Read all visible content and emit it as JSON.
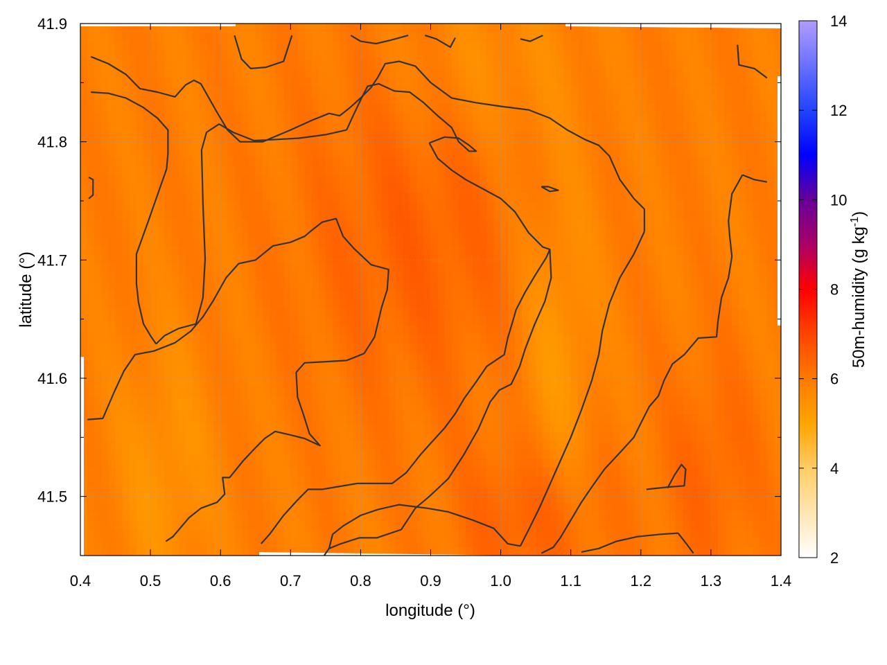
{
  "chart_data": {
    "type": "heatmap",
    "xlabel": "longitude (°)",
    "ylabel": "latitude (°)",
    "colorbar_label": "50m-humidity (g kg",
    "colorbar_label_sup": "-1",
    "colorbar_label_end": ")",
    "xlim": [
      0.4,
      1.4
    ],
    "ylim": [
      41.45,
      41.9
    ],
    "x_ticks": [
      0.4,
      0.5,
      0.6,
      0.7,
      0.8,
      0.9,
      1.0,
      1.1,
      1.2,
      1.3,
      1.4
    ],
    "x_tick_labels": [
      "0.4",
      "0.5",
      "0.6",
      "0.7",
      "0.8",
      "0.9",
      "1.0",
      "1.1",
      "1.2",
      "1.3",
      "1.4"
    ],
    "y_ticks": [
      41.5,
      41.6,
      41.7,
      41.8,
      41.9
    ],
    "y_tick_labels": [
      "41.5",
      "41.6",
      "41.7",
      "41.8",
      "41.9"
    ],
    "colorbar_range": [
      2,
      14
    ],
    "colorbar_ticks": [
      2,
      4,
      6,
      8,
      10,
      12,
      14
    ],
    "colorbar_tick_labels": [
      "2",
      "4",
      "6",
      "8",
      "10",
      "12",
      "14"
    ],
    "colormap": [
      {
        "value": 2,
        "color": "#ffffff"
      },
      {
        "value": 4,
        "color": "#ffcc66"
      },
      {
        "value": 5,
        "color": "#ffa500"
      },
      {
        "value": 6,
        "color": "#ff7a00"
      },
      {
        "value": 7,
        "color": "#ff4400"
      },
      {
        "value": 8,
        "color": "#ff0000"
      },
      {
        "value": 9,
        "color": "#aa0066"
      },
      {
        "value": 10,
        "color": "#660099"
      },
      {
        "value": 11,
        "color": "#0000ff"
      },
      {
        "value": 12,
        "color": "#2244ff"
      },
      {
        "value": 14,
        "color": "#b09cff"
      }
    ],
    "field_base_value": 5.9,
    "field_features": [
      {
        "kind": "wet",
        "lon": 0.88,
        "lat": 41.72,
        "amplitude": 0.55,
        "spread_lon": 0.12,
        "spread_lat": 0.1
      },
      {
        "kind": "wet",
        "lon": 1.05,
        "lat": 41.48,
        "amplitude": 0.7,
        "spread_lon": 0.07,
        "spread_lat": 0.05
      },
      {
        "kind": "wet",
        "lon": 1.3,
        "lat": 41.52,
        "amplitude": 0.45,
        "spread_lon": 0.05,
        "spread_lat": 0.07
      },
      {
        "kind": "dry",
        "lon": 1.08,
        "lat": 41.62,
        "amplitude": -0.6,
        "spread_lon": 0.04,
        "spread_lat": 0.12
      },
      {
        "kind": "dry",
        "lon": 0.52,
        "lat": 41.52,
        "amplitude": -0.5,
        "spread_lon": 0.05,
        "spread_lat": 0.08
      },
      {
        "kind": "dry",
        "lon": 0.98,
        "lat": 41.86,
        "amplitude": -0.4,
        "spread_lon": 0.08,
        "spread_lat": 0.05
      }
    ],
    "contour_color": "#333333",
    "contours": [
      [
        [
          0.415,
          41.872
        ],
        [
          0.44,
          41.866
        ],
        [
          0.465,
          41.857
        ],
        [
          0.485,
          41.845
        ],
        [
          0.51,
          41.842
        ],
        [
          0.535,
          41.838
        ],
        [
          0.55,
          41.848
        ],
        [
          0.562,
          41.852
        ],
        [
          0.572,
          41.849
        ],
        [
          0.595,
          41.825
        ],
        [
          0.61,
          41.81
        ],
        [
          0.628,
          41.8
        ],
        [
          0.66,
          41.8
        ],
        [
          0.68,
          41.805
        ],
        [
          0.7,
          41.81
        ],
        [
          0.73,
          41.818
        ],
        [
          0.755,
          41.824
        ],
        [
          0.77,
          41.822
        ],
        [
          0.785,
          41.829
        ]
      ],
      [
        [
          0.785,
          41.829
        ],
        [
          0.8,
          41.837
        ],
        [
          0.815,
          41.846
        ],
        [
          0.825,
          41.855
        ],
        [
          0.835,
          41.866
        ],
        [
          0.855,
          41.868
        ],
        [
          0.878,
          41.864
        ],
        [
          0.9,
          41.85
        ],
        [
          0.93,
          41.837
        ],
        [
          0.965,
          41.833
        ],
        [
          1.0,
          41.83
        ],
        [
          1.04,
          41.827
        ],
        [
          1.07,
          41.82
        ],
        [
          1.095,
          41.81
        ],
        [
          1.12,
          41.802
        ],
        [
          1.14,
          41.797
        ],
        [
          1.155,
          41.788
        ],
        [
          1.17,
          41.768
        ],
        [
          1.19,
          41.752
        ],
        [
          1.205,
          41.743
        ],
        [
          1.205,
          41.724
        ]
      ],
      [
        [
          1.205,
          41.724
        ],
        [
          1.19,
          41.705
        ],
        [
          1.17,
          41.685
        ],
        [
          1.155,
          41.663
        ],
        [
          1.145,
          41.64
        ],
        [
          1.14,
          41.62
        ],
        [
          1.13,
          41.598
        ],
        [
          1.115,
          41.573
        ],
        [
          1.1,
          41.55
        ],
        [
          1.085,
          41.53
        ],
        [
          1.07,
          41.51
        ],
        [
          1.055,
          41.49
        ],
        [
          1.04,
          41.472
        ],
        [
          1.028,
          41.458
        ]
      ],
      [
        [
          0.415,
          41.842
        ],
        [
          0.44,
          41.841
        ],
        [
          0.465,
          41.837
        ],
        [
          0.49,
          41.829
        ],
        [
          0.51,
          41.82
        ],
        [
          0.525,
          41.81
        ],
        [
          0.525,
          41.79
        ],
        [
          0.523,
          41.777
        ],
        [
          0.51,
          41.755
        ],
        [
          0.497,
          41.733
        ],
        [
          0.48,
          41.705
        ],
        [
          0.48,
          41.68
        ],
        [
          0.483,
          41.664
        ],
        [
          0.49,
          41.646
        ],
        [
          0.5,
          41.636
        ],
        [
          0.508,
          41.629
        ]
      ],
      [
        [
          0.508,
          41.629
        ],
        [
          0.52,
          41.636
        ],
        [
          0.54,
          41.642
        ],
        [
          0.565,
          41.646
        ],
        [
          0.575,
          41.668
        ],
        [
          0.578,
          41.701
        ],
        [
          0.575,
          41.747
        ],
        [
          0.573,
          41.793
        ],
        [
          0.58,
          41.808
        ],
        [
          0.598,
          41.815
        ],
        [
          0.618,
          41.808
        ],
        [
          0.648,
          41.801
        ],
        [
          0.68,
          41.802
        ],
        [
          0.712,
          41.803
        ],
        [
          0.75,
          41.806
        ],
        [
          0.78,
          41.81
        ]
      ],
      [
        [
          0.78,
          41.81
        ],
        [
          0.79,
          41.823
        ],
        [
          0.803,
          41.839
        ],
        [
          0.81,
          41.847
        ],
        [
          0.826,
          41.849
        ],
        [
          0.848,
          41.843
        ],
        [
          0.87,
          41.842
        ],
        [
          0.89,
          41.833
        ],
        [
          0.91,
          41.822
        ],
        [
          0.93,
          41.812
        ],
        [
          0.94,
          41.8
        ],
        [
          0.955,
          41.792
        ],
        [
          0.965,
          41.792
        ],
        [
          0.955,
          41.797
        ],
        [
          0.94,
          41.803
        ],
        [
          0.92,
          41.804
        ],
        [
          0.898,
          41.799
        ]
      ],
      [
        [
          0.898,
          41.799
        ],
        [
          0.91,
          41.786
        ],
        [
          0.93,
          41.776
        ],
        [
          0.95,
          41.768
        ],
        [
          0.975,
          41.76
        ],
        [
          1.0,
          41.752
        ],
        [
          1.02,
          41.741
        ],
        [
          1.04,
          41.723
        ],
        [
          1.06,
          41.711
        ],
        [
          1.07,
          41.709
        ],
        [
          1.072,
          41.685
        ],
        [
          1.063,
          41.665
        ],
        [
          1.048,
          41.645
        ],
        [
          1.035,
          41.625
        ],
        [
          1.027,
          41.61
        ],
        [
          1.015,
          41.595
        ],
        [
          0.998,
          41.59
        ],
        [
          0.985,
          41.58
        ],
        [
          0.968,
          41.557
        ],
        [
          0.947,
          41.535
        ],
        [
          0.925,
          41.515
        ],
        [
          0.898,
          41.5
        ],
        [
          0.878,
          41.49
        ],
        [
          0.858,
          41.472
        ],
        [
          0.823,
          41.465
        ],
        [
          0.798,
          41.465
        ],
        [
          0.772,
          41.46
        ],
        [
          0.755,
          41.456
        ],
        [
          0.748,
          41.45
        ]
      ],
      [
        [
          0.41,
          41.565
        ],
        [
          0.432,
          41.566
        ],
        [
          0.448,
          41.588
        ],
        [
          0.462,
          41.606
        ],
        [
          0.478,
          41.62
        ],
        [
          0.505,
          41.623
        ],
        [
          0.535,
          41.63
        ],
        [
          0.558,
          41.64
        ],
        [
          0.575,
          41.652
        ],
        [
          0.59,
          41.666
        ],
        [
          0.608,
          41.685
        ],
        [
          0.626,
          41.697
        ],
        [
          0.65,
          41.7
        ],
        [
          0.675,
          41.712
        ],
        [
          0.7,
          41.715
        ],
        [
          0.72,
          41.72
        ],
        [
          0.73,
          41.725
        ],
        [
          0.745,
          41.732
        ],
        [
          0.765,
          41.735
        ],
        [
          0.775,
          41.72
        ],
        [
          0.79,
          41.71
        ],
        [
          0.815,
          41.696
        ],
        [
          0.84,
          41.692
        ],
        [
          0.838,
          41.675
        ],
        [
          0.83,
          41.66
        ],
        [
          0.82,
          41.635
        ],
        [
          0.805,
          41.621
        ],
        [
          0.78,
          41.615
        ],
        [
          0.75,
          41.614
        ],
        [
          0.72,
          41.613
        ],
        [
          0.708,
          41.605
        ]
      ],
      [
        [
          0.708,
          41.605
        ],
        [
          0.71,
          41.584
        ],
        [
          0.718,
          41.57
        ],
        [
          0.727,
          41.553
        ],
        [
          0.742,
          41.543
        ],
        [
          0.72,
          41.549
        ],
        [
          0.7,
          41.552
        ],
        [
          0.678,
          41.555
        ],
        [
          0.663,
          41.549
        ],
        [
          0.648,
          41.54
        ],
        [
          0.632,
          41.53
        ],
        [
          0.613,
          41.516
        ],
        [
          0.603,
          41.516
        ],
        [
          0.606,
          41.502
        ],
        [
          0.595,
          41.495
        ],
        [
          0.572,
          41.49
        ],
        [
          0.555,
          41.482
        ],
        [
          0.532,
          41.466
        ],
        [
          0.522,
          41.462
        ]
      ],
      [
        [
          0.658,
          41.46
        ],
        [
          0.67,
          41.468
        ],
        [
          0.69,
          41.484
        ],
        [
          0.71,
          41.497
        ],
        [
          0.725,
          41.506
        ],
        [
          0.745,
          41.506
        ],
        [
          0.765,
          41.508
        ],
        [
          0.795,
          41.511
        ],
        [
          0.82,
          41.511
        ],
        [
          0.845,
          41.511
        ],
        [
          0.865,
          41.52
        ],
        [
          0.885,
          41.535
        ],
        [
          0.9,
          41.545
        ],
        [
          0.92,
          41.558
        ],
        [
          0.935,
          41.57
        ],
        [
          0.948,
          41.583
        ],
        [
          0.965,
          41.597
        ],
        [
          0.98,
          41.61
        ],
        [
          0.995,
          41.616
        ],
        [
          1.005,
          41.62
        ],
        [
          1.01,
          41.634
        ],
        [
          1.015,
          41.644
        ],
        [
          1.022,
          41.658
        ],
        [
          1.035,
          41.673
        ],
        [
          1.05,
          41.688
        ],
        [
          1.065,
          41.702
        ],
        [
          1.07,
          41.709
        ]
      ],
      [
        [
          0.755,
          41.456
        ],
        [
          0.76,
          41.468
        ],
        [
          0.775,
          41.475
        ],
        [
          0.8,
          41.484
        ],
        [
          0.825,
          41.489
        ],
        [
          0.855,
          41.493
        ],
        [
          0.895,
          41.49
        ],
        [
          0.925,
          41.487
        ],
        [
          0.96,
          41.48
        ],
        [
          0.99,
          41.473
        ],
        [
          1.01,
          41.46
        ],
        [
          1.028,
          41.458
        ]
      ],
      [
        [
          1.115,
          41.453
        ],
        [
          1.14,
          41.456
        ],
        [
          1.165,
          41.462
        ],
        [
          1.195,
          41.466
        ],
        [
          1.228,
          41.468
        ],
        [
          1.253,
          41.469
        ]
      ],
      [
        [
          1.253,
          41.469
        ],
        [
          1.265,
          41.46
        ],
        [
          1.275,
          41.452
        ]
      ],
      [
        [
          1.208,
          41.506
        ],
        [
          1.24,
          41.508
        ],
        [
          1.262,
          41.509
        ],
        [
          1.264,
          41.523
        ],
        [
          1.258,
          41.527
        ],
        [
          1.248,
          41.518
        ],
        [
          1.238,
          41.507
        ]
      ],
      [
        [
          1.345,
          41.772
        ],
        [
          1.362,
          41.768
        ],
        [
          1.38,
          41.766
        ]
      ],
      [
        [
          1.345,
          41.772
        ],
        [
          1.33,
          41.756
        ],
        [
          1.325,
          41.733
        ],
        [
          1.327,
          41.719
        ],
        [
          1.33,
          41.703
        ],
        [
          1.325,
          41.685
        ],
        [
          1.315,
          41.668
        ],
        [
          1.31,
          41.648
        ],
        [
          1.308,
          41.635
        ],
        [
          1.282,
          41.634
        ],
        [
          1.262,
          41.62
        ],
        [
          1.245,
          41.612
        ],
        [
          1.233,
          41.598
        ],
        [
          1.225,
          41.585
        ],
        [
          1.212,
          41.576
        ],
        [
          1.2,
          41.562
        ],
        [
          1.19,
          41.55
        ],
        [
          1.17,
          41.537
        ],
        [
          1.148,
          41.523
        ],
        [
          1.13,
          41.508
        ],
        [
          1.115,
          41.495
        ],
        [
          1.1,
          41.48
        ],
        [
          1.085,
          41.465
        ],
        [
          1.075,
          41.457
        ],
        [
          1.058,
          41.452
        ]
      ],
      [
        [
          1.058,
          41.762
        ],
        [
          1.07,
          41.758
        ],
        [
          1.082,
          41.759
        ],
        [
          1.068,
          41.762
        ],
        [
          1.058,
          41.762
        ]
      ],
      [
        [
          0.412,
          41.77
        ],
        [
          0.418,
          41.768
        ],
        [
          0.418,
          41.755
        ],
        [
          0.412,
          41.752
        ]
      ],
      [
        [
          0.62,
          41.89
        ],
        [
          0.63,
          41.87
        ],
        [
          0.643,
          41.862
        ],
        [
          0.665,
          41.863
        ],
        [
          0.69,
          41.868
        ],
        [
          0.702,
          41.89
        ]
      ],
      [
        [
          0.786,
          41.89
        ],
        [
          0.8,
          41.885
        ],
        [
          0.822,
          41.883
        ],
        [
          0.843,
          41.886
        ],
        [
          0.868,
          41.89
        ]
      ],
      [
        [
          0.892,
          41.89
        ],
        [
          0.908,
          41.887
        ],
        [
          0.928,
          41.88
        ],
        [
          0.935,
          41.888
        ]
      ],
      [
        [
          1.028,
          41.887
        ],
        [
          1.042,
          41.885
        ],
        [
          1.06,
          41.89
        ]
      ],
      [
        [
          1.338,
          41.882
        ],
        [
          1.34,
          41.865
        ],
        [
          1.362,
          41.862
        ],
        [
          1.38,
          41.854
        ]
      ]
    ]
  }
}
